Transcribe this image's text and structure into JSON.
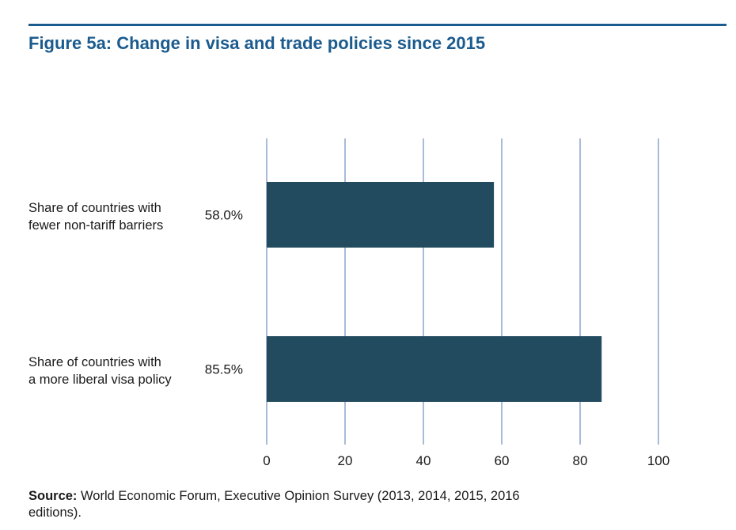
{
  "figure": {
    "title": "Figure 5a: Change in visa and trade policies since 2015"
  },
  "source": {
    "label": "Source:",
    "text": "World Economic Forum, Executive Opinion Survey (2013, 2014, 2015, 2016 editions)."
  },
  "colors": {
    "title": "#1b5b8e",
    "bar": "#224b5f",
    "grid": "#6f8fbe"
  },
  "chart_data": {
    "type": "bar",
    "orientation": "horizontal",
    "title": "Figure 5a: Change in visa and trade policies since 2015",
    "categories": [
      [
        "Share of countries with",
        "fewer non-tariff barriers"
      ],
      [
        "Share of countries with",
        "a more liberal visa policy"
      ]
    ],
    "values": [
      58.0,
      85.5
    ],
    "value_labels": [
      "58.0%",
      "85.5%"
    ],
    "xlim": [
      0,
      100
    ],
    "xticks": [
      0,
      20,
      40,
      60,
      80,
      100
    ],
    "xtick_labels": [
      "0",
      "20",
      "40",
      "60",
      "80",
      "100"
    ],
    "xlabel": "",
    "ylabel": "",
    "grid": "vertical",
    "legend": "none"
  }
}
